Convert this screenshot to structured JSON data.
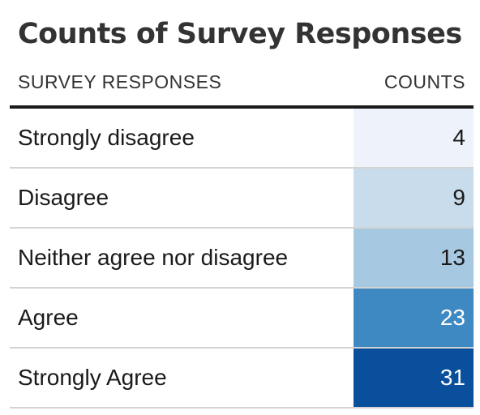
{
  "chart_data": {
    "type": "table",
    "title": "Counts of Survey Responses",
    "columns": [
      "SURVEY RESPONSES",
      "COUNTS"
    ],
    "rows": [
      {
        "label": "Strongly disagree",
        "value": 4,
        "color": "#edf2fb",
        "text_color": "#1a1a1a"
      },
      {
        "label": "Disagree",
        "value": 9,
        "color": "#c8dcec",
        "text_color": "#1a1a1a"
      },
      {
        "label": "Neither agree nor disagree",
        "value": 13,
        "color": "#a6c9e1",
        "text_color": "#1a1a1a"
      },
      {
        "label": "Agree",
        "value": 23,
        "color": "#3f89c3",
        "text_color": "#ffffff"
      },
      {
        "label": "Strongly Agree",
        "value": 31,
        "color": "#0a4f9c",
        "text_color": "#ffffff"
      }
    ]
  }
}
